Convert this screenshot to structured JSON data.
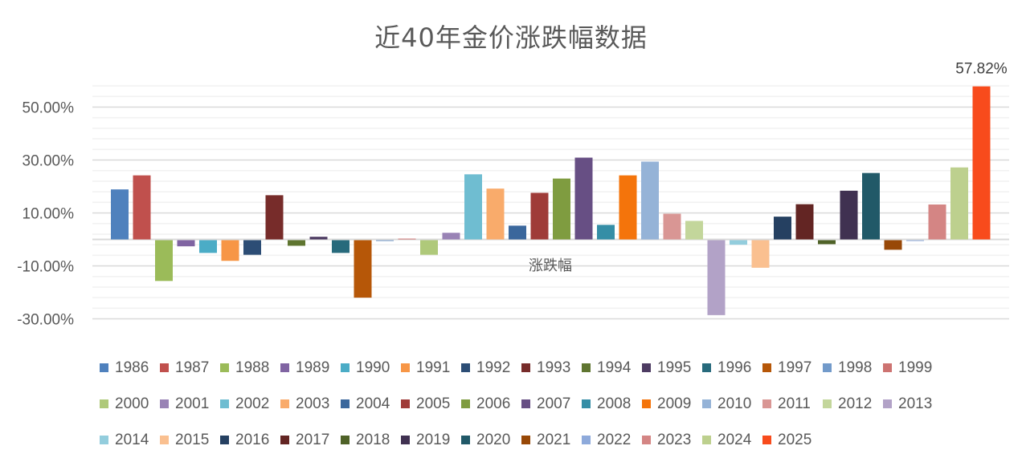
{
  "chart_data": {
    "type": "bar",
    "title": "近40年金价涨跌幅数据",
    "xlabel": "涨跌幅",
    "ylabel": "",
    "ylim": [
      -30,
      58
    ],
    "yticks": [
      50,
      30,
      10,
      -10,
      -30
    ],
    "ytick_labels": [
      "50.00%",
      "30.00%",
      "10.00%",
      "-10.00%",
      "-30.00%"
    ],
    "grid": true,
    "legend_position": "bottom",
    "unit": "%",
    "series": [
      {
        "name": "1986",
        "value": 18.9,
        "color": "#4F81BD"
      },
      {
        "name": "1987",
        "value": 24.2,
        "color": "#C0504D"
      },
      {
        "name": "1988",
        "value": -15.4,
        "color": "#9BBB59"
      },
      {
        "name": "1989",
        "value": -2.3,
        "color": "#8064A2"
      },
      {
        "name": "1990",
        "value": -4.8,
        "color": "#4BACC6"
      },
      {
        "name": "1991",
        "value": -7.8,
        "color": "#F79646"
      },
      {
        "name": "1992",
        "value": -5.5,
        "color": "#2C4D75"
      },
      {
        "name": "1993",
        "value": 16.7,
        "color": "#772C2A"
      },
      {
        "name": "1994",
        "value": -2.1,
        "color": "#5F7530"
      },
      {
        "name": "1995",
        "value": 1.0,
        "color": "#4D3B62"
      },
      {
        "name": "1996",
        "value": -4.8,
        "color": "#276A7C"
      },
      {
        "name": "1997",
        "value": -21.7,
        "color": "#B65708"
      },
      {
        "name": "1998",
        "value": -0.3,
        "color": "#729ACA"
      },
      {
        "name": "1999",
        "value": 0.3,
        "color": "#CD7371"
      },
      {
        "name": "2000",
        "value": -5.5,
        "color": "#AFC97A"
      },
      {
        "name": "2001",
        "value": 2.5,
        "color": "#9983B5"
      },
      {
        "name": "2002",
        "value": 24.6,
        "color": "#6FBDD1"
      },
      {
        "name": "2003",
        "value": 19.2,
        "color": "#F9AB6B"
      },
      {
        "name": "2004",
        "value": 5.2,
        "color": "#3A679C"
      },
      {
        "name": "2005",
        "value": 17.6,
        "color": "#9F3B38"
      },
      {
        "name": "2006",
        "value": 23.0,
        "color": "#7F9C40"
      },
      {
        "name": "2007",
        "value": 30.9,
        "color": "#674F84"
      },
      {
        "name": "2008",
        "value": 5.5,
        "color": "#358EA6"
      },
      {
        "name": "2009",
        "value": 24.2,
        "color": "#F4740B"
      },
      {
        "name": "2010",
        "value": 29.4,
        "color": "#95B3D7"
      },
      {
        "name": "2011",
        "value": 9.7,
        "color": "#D99694"
      },
      {
        "name": "2012",
        "value": 7.0,
        "color": "#C3D69B"
      },
      {
        "name": "2013",
        "value": -28.3,
        "color": "#B2A2C7"
      },
      {
        "name": "2014",
        "value": -1.7,
        "color": "#93CDDD"
      },
      {
        "name": "2015",
        "value": -10.4,
        "color": "#FAC090"
      },
      {
        "name": "2016",
        "value": 8.6,
        "color": "#254061"
      },
      {
        "name": "2017",
        "value": 13.3,
        "color": "#632523"
      },
      {
        "name": "2018",
        "value": -1.5,
        "color": "#4F6228"
      },
      {
        "name": "2019",
        "value": 18.4,
        "color": "#403151"
      },
      {
        "name": "2020",
        "value": 25.1,
        "color": "#215968"
      },
      {
        "name": "2021",
        "value": -3.6,
        "color": "#984807"
      },
      {
        "name": "2022",
        "value": -0.3,
        "color": "#8EAADB"
      },
      {
        "name": "2023",
        "value": 13.2,
        "color": "#D48584"
      },
      {
        "name": "2024",
        "value": 27.2,
        "color": "#BDD08E"
      },
      {
        "name": "2025",
        "value": 57.82,
        "color": "#F84B1C",
        "data_label": "57.82%"
      }
    ]
  }
}
